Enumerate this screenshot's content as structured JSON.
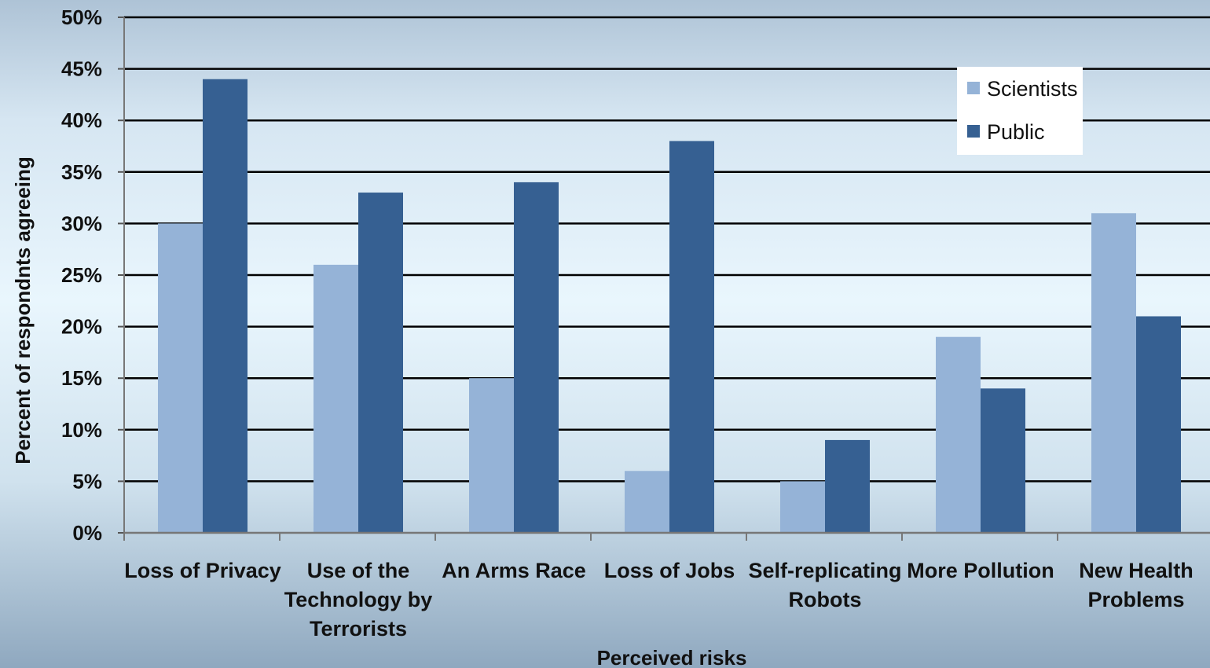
{
  "chart_data": {
    "type": "bar",
    "title": "",
    "xlabel": "Perceived risks",
    "ylabel": "Percent of respondnts agreeing",
    "ylim": [
      0,
      50
    ],
    "yticks": [
      0,
      5,
      10,
      15,
      20,
      25,
      30,
      35,
      40,
      45,
      50
    ],
    "ytick_labels": [
      "0%",
      "5%",
      "10%",
      "15%",
      "20%",
      "25%",
      "30%",
      "35%",
      "40%",
      "45%",
      "50%"
    ],
    "grid": true,
    "legend_position": "top-right",
    "categories": [
      [
        "Loss of Privacy"
      ],
      [
        "Use of the",
        "Technology by",
        "Terrorists"
      ],
      [
        "An Arms Race"
      ],
      [
        "Loss of Jobs"
      ],
      [
        "Self-replicating",
        "Robots"
      ],
      [
        "More Pollution"
      ],
      [
        "New Health",
        "Problems"
      ]
    ],
    "series": [
      {
        "name": "Scientists",
        "color": "#95b3d7",
        "values": [
          30,
          26,
          15,
          6,
          5,
          19,
          31
        ]
      },
      {
        "name": "Public",
        "color": "#366092",
        "values": [
          44,
          33,
          34,
          38,
          9,
          14,
          21
        ]
      }
    ]
  }
}
